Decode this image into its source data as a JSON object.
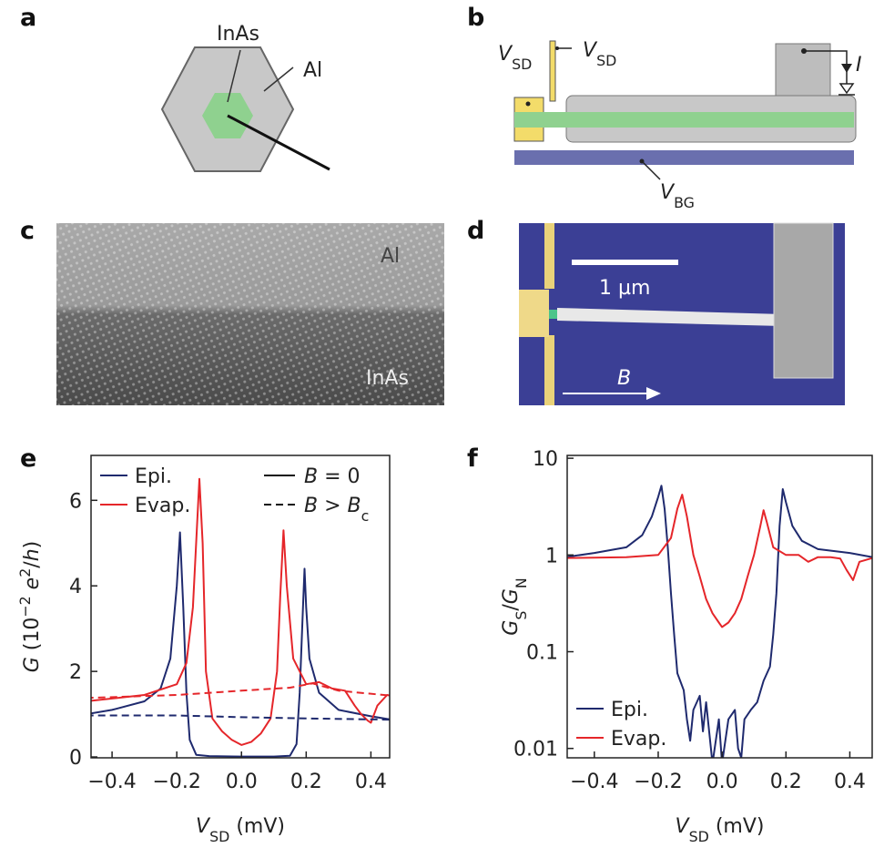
{
  "panels": {
    "a": {
      "label": "a",
      "core": "InAs",
      "shell": "Al"
    },
    "b": {
      "label": "b",
      "vsd_left": [
        {
          "text": "V",
          "italic": true
        },
        {
          "text": "SD",
          "sub": true
        }
      ],
      "vsd_top": [
        {
          "text": "V",
          "italic": true
        },
        {
          "text": "SD",
          "sub": true
        }
      ],
      "current": [
        {
          "text": "I",
          "italic": true
        }
      ],
      "vbg": [
        {
          "text": "V",
          "italic": true
        },
        {
          "text": "BG",
          "sub": true
        }
      ]
    },
    "c": {
      "label": "c",
      "top": "Al",
      "bottom": "InAs"
    },
    "d": {
      "label": "d",
      "scale": "1 µm",
      "field": [
        {
          "text": "B",
          "italic": true
        }
      ]
    }
  },
  "chart_data": [
    {
      "type": "line",
      "panel_label": "e",
      "xlim": [
        -0.465,
        0.458
      ],
      "ylim": [
        -0.02,
        7.05
      ],
      "xticks": [
        {
          "value": -0.4,
          "label": "−0.4"
        },
        {
          "value": -0.2,
          "label": "−0.2"
        },
        {
          "value": 0,
          "label": "0.0"
        },
        {
          "value": 0.2,
          "label": "0.2"
        },
        {
          "value": 0.4,
          "label": "0.4"
        }
      ],
      "yticks": [
        0,
        2,
        4,
        6
      ],
      "xlabel": [
        {
          "text": "V",
          "italic": true
        },
        {
          "text": "SD",
          "sub": true
        },
        {
          "text": " (mV)"
        }
      ],
      "ylabel": [
        {
          "text": "G",
          "italic": true
        },
        {
          "text": " (10"
        },
        {
          "text": "−2",
          "sup": true
        },
        {
          "text": " "
        },
        {
          "text": "e",
          "italic": true
        },
        {
          "text": "2",
          "sup": true
        },
        {
          "text": "/"
        },
        {
          "text": "h",
          "italic": true
        },
        {
          "text": ")"
        }
      ],
      "legend": "top-left",
      "series": [
        {
          "name": "Epi.",
          "color": "#1f2a6e",
          "dash": false,
          "x": [
            -0.48,
            -0.4,
            -0.3,
            -0.25,
            -0.22,
            -0.2,
            -0.19,
            -0.18,
            -0.17,
            -0.16,
            -0.14,
            -0.1,
            0,
            0.1,
            0.15,
            0.17,
            0.18,
            0.19,
            0.195,
            0.2,
            0.21,
            0.24,
            0.3,
            0.4,
            0.48
          ],
          "values": [
            1.0,
            1.1,
            1.3,
            1.6,
            2.3,
            4.0,
            5.25,
            3.5,
            1.5,
            0.4,
            0.05,
            0.02,
            0.01,
            0.01,
            0.03,
            0.3,
            1.5,
            3.5,
            4.4,
            3.5,
            2.3,
            1.5,
            1.1,
            0.95,
            0.85
          ]
        },
        {
          "name": "Evap.",
          "color": "#e5262a",
          "dash": false,
          "x": [
            -0.48,
            -0.3,
            -0.2,
            -0.17,
            -0.15,
            -0.13,
            -0.12,
            -0.11,
            -0.09,
            -0.06,
            -0.03,
            0,
            0.03,
            0.06,
            0.09,
            0.11,
            0.12,
            0.13,
            0.14,
            0.16,
            0.2,
            0.24,
            0.28,
            0.32,
            0.35,
            0.37,
            0.39,
            0.4,
            0.42,
            0.45,
            0.48
          ],
          "values": [
            1.3,
            1.45,
            1.7,
            2.2,
            3.5,
            6.5,
            5.0,
            2.0,
            0.9,
            0.6,
            0.4,
            0.28,
            0.35,
            0.55,
            0.9,
            2.0,
            3.8,
            5.3,
            4.0,
            2.3,
            1.7,
            1.75,
            1.6,
            1.55,
            1.2,
            1.0,
            0.85,
            0.8,
            1.2,
            1.45,
            1.4
          ]
        },
        {
          "color": "#1f2a6e",
          "dash": true,
          "x": [
            -0.48,
            -0.2,
            0,
            0.2,
            0.48
          ],
          "values": [
            0.97,
            0.97,
            0.93,
            0.9,
            0.87
          ]
        },
        {
          "color": "#e5262a",
          "dash": true,
          "x": [
            -0.48,
            -0.2,
            0,
            0.15,
            0.22,
            0.3,
            0.48
          ],
          "values": [
            1.38,
            1.45,
            1.55,
            1.62,
            1.72,
            1.55,
            1.42
          ]
        }
      ],
      "legend_styles": [
        {
          "label": [
            {
              "text": "B",
              "italic": true
            },
            {
              "text": " = 0"
            }
          ],
          "dash": false
        },
        {
          "label": [
            {
              "text": "B",
              "italic": true
            },
            {
              "text": " > "
            },
            {
              "text": "B",
              "italic": true
            },
            {
              "text": "c",
              "sub": true
            }
          ],
          "dash": true
        }
      ]
    },
    {
      "type": "line",
      "panel_label": "f",
      "log_y": true,
      "xlim": [
        -0.485,
        0.47
      ],
      "ylim": [
        0.008,
        10.7
      ],
      "xticks": [
        {
          "value": -0.4,
          "label": "−0.4"
        },
        {
          "value": -0.2,
          "label": "−0.2"
        },
        {
          "value": 0,
          "label": "0.0"
        },
        {
          "value": 0.2,
          "label": "0.2"
        },
        {
          "value": 0.4,
          "label": "0.4"
        }
      ],
      "yticks": [
        10,
        1,
        0.1,
        0.01
      ],
      "xlabel": [
        {
          "text": "V",
          "italic": true
        },
        {
          "text": "SD",
          "sub": true
        },
        {
          "text": " (mV)"
        }
      ],
      "ylabel": [
        {
          "text": "G",
          "italic": true
        },
        {
          "text": "S",
          "sub": true
        },
        {
          "text": "/"
        },
        {
          "text": "G",
          "italic": true
        },
        {
          "text": "N",
          "sub": true
        }
      ],
      "legend": "bottom-left",
      "series": [
        {
          "name": "Epi.",
          "color": "#1f2a6e",
          "x": [
            -0.49,
            -0.4,
            -0.3,
            -0.25,
            -0.22,
            -0.2,
            -0.19,
            -0.18,
            -0.17,
            -0.16,
            -0.15,
            -0.14,
            -0.12,
            -0.11,
            -0.1,
            -0.09,
            -0.07,
            -0.06,
            -0.05,
            -0.03,
            -0.01,
            0,
            0.02,
            0.04,
            0.05,
            0.06,
            0.07,
            0.09,
            0.11,
            0.13,
            0.15,
            0.16,
            0.17,
            0.18,
            0.19,
            0.2,
            0.22,
            0.25,
            0.3,
            0.4,
            0.47
          ],
          "values": [
            0.95,
            1.05,
            1.2,
            1.6,
            2.5,
            4.0,
            5.2,
            3.0,
            1.2,
            0.4,
            0.15,
            0.06,
            0.04,
            0.02,
            0.012,
            0.025,
            0.035,
            0.015,
            0.03,
            0.007,
            0.02,
            0.007,
            0.02,
            0.025,
            0.01,
            0.008,
            0.02,
            0.025,
            0.03,
            0.05,
            0.07,
            0.15,
            0.4,
            2.0,
            4.8,
            3.5,
            2.0,
            1.4,
            1.15,
            1.05,
            0.95
          ]
        },
        {
          "name": "Evap.",
          "color": "#e5262a",
          "x": [
            -0.49,
            -0.3,
            -0.2,
            -0.16,
            -0.14,
            -0.125,
            -0.11,
            -0.09,
            -0.07,
            -0.05,
            -0.03,
            -0.01,
            0,
            0.02,
            0.04,
            0.06,
            0.08,
            0.1,
            0.12,
            0.13,
            0.14,
            0.16,
            0.2,
            0.24,
            0.27,
            0.3,
            0.34,
            0.37,
            0.39,
            0.41,
            0.43,
            0.47
          ],
          "values": [
            0.93,
            0.95,
            1.0,
            1.5,
            3.0,
            4.2,
            2.5,
            1.0,
            0.6,
            0.35,
            0.25,
            0.2,
            0.18,
            0.2,
            0.25,
            0.35,
            0.6,
            1.0,
            2.0,
            2.9,
            2.2,
            1.2,
            1.0,
            1.0,
            0.85,
            0.95,
            0.95,
            0.92,
            0.7,
            0.55,
            0.85,
            0.93
          ]
        }
      ]
    }
  ]
}
